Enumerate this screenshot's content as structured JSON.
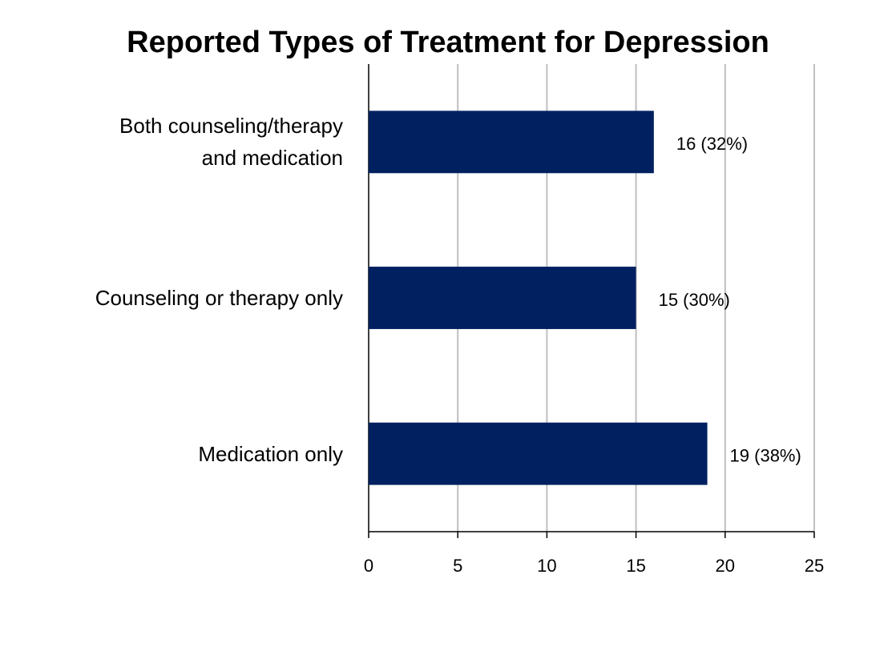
{
  "chart_data": {
    "type": "bar",
    "orientation": "horizontal",
    "title": "Reported Types of Treatment for Depression",
    "categories": [
      "Both counseling/therapy and medication",
      "Counseling or therapy only",
      "Medication only"
    ],
    "values": [
      16,
      15,
      19
    ],
    "value_labels": [
      "16 (32%)",
      "15 (30%)",
      "19 (38%)"
    ],
    "color": "#002060",
    "xlim": [
      0,
      25
    ],
    "xticks": [
      0,
      5,
      10,
      15,
      20,
      25
    ],
    "grid": true
  }
}
